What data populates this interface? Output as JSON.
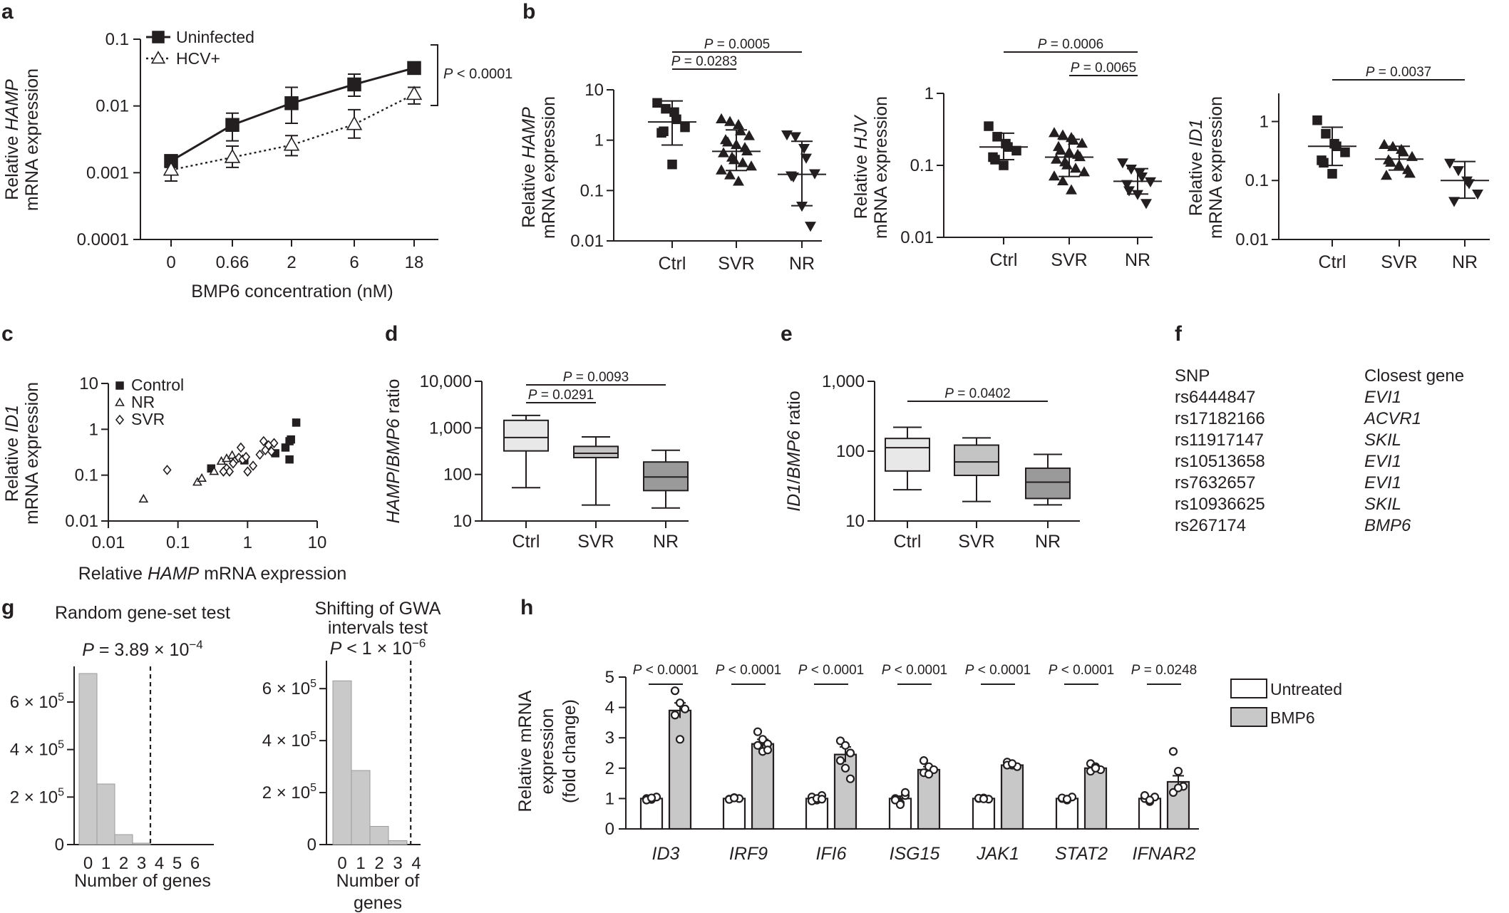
{
  "panel_labels": [
    "a",
    "b",
    "c",
    "d",
    "e",
    "f",
    "g",
    "h"
  ],
  "colors": {
    "ink": "#231f20",
    "box_ctrl": "#e8e8e8",
    "box_svr": "#c4c4c4",
    "box_nr": "#9a9a9a",
    "hist": "#c9c9c9",
    "bmp6_bar": "#c8c8c8"
  },
  "chart_data": [
    {
      "panel": "a",
      "type": "line",
      "ylog": true,
      "ylim": [
        0.0001,
        0.1
      ],
      "ytick_labels": [
        "0.1",
        "0.01",
        "0.001",
        "0.0001"
      ],
      "categories": [
        "0",
        "0.66",
        "2",
        "6",
        "18"
      ],
      "xlabel": "BMP6 concentration (nM)",
      "ylabel_pre": "Relative ",
      "ylabel_it": "HAMP",
      "ylabel_line2": "mRNA expression",
      "annotation_p": "P",
      "annotation_rest": " < 0.0001",
      "series": [
        {
          "name": "Uninfected",
          "marker": "filled-square",
          "line": "solid",
          "values": [
            0.0015,
            0.0052,
            0.011,
            0.021,
            0.037
          ],
          "err_low": [
            0.0012,
            0.003,
            0.0055,
            0.014,
            0.03
          ],
          "err_high": [
            0.0017,
            0.0078,
            0.019,
            0.03,
            0.045
          ]
        },
        {
          "name": "HCV+",
          "marker": "open-triangle",
          "line": "dotted",
          "values": [
            0.0011,
            0.0017,
            0.0026,
            0.0053,
            0.015
          ],
          "err_low": [
            0.00075,
            0.0012,
            0.0018,
            0.0033,
            0.0107
          ],
          "err_high": [
            0.0015,
            0.0025,
            0.0036,
            0.0088,
            0.019
          ]
        }
      ]
    },
    {
      "panel": "b1",
      "type": "scatter",
      "ylog": true,
      "ylim": [
        0.01,
        10
      ],
      "ytick_labels": [
        "10",
        "1",
        "0.1",
        "0.01"
      ],
      "categories": [
        "Ctrl",
        "SVR",
        "NR"
      ],
      "ylabel_pre": "Relative ",
      "ylabel_it": "HAMP",
      "ylabel_line2": "mRNA expression",
      "groups": [
        {
          "name": "Ctrl",
          "marker": "square",
          "mean": 2.3,
          "sd_low": 0.8,
          "sd_high": 6.0,
          "points": [
            5.5,
            4.2,
            3.6,
            2.6,
            1.8,
            1.4,
            1.5,
            0.33
          ]
        },
        {
          "name": "SVR",
          "marker": "triangle",
          "mean": 0.6,
          "sd_low": 0.25,
          "sd_high": 1.6,
          "points": [
            2.6,
            2.3,
            2.0,
            1.5,
            1.2,
            1.0,
            0.9,
            0.8,
            0.7,
            0.6,
            0.55,
            0.45,
            0.4,
            0.35,
            0.3,
            0.25,
            0.2,
            0.15
          ]
        },
        {
          "name": "NR",
          "marker": "inv-triangle",
          "mean": 0.21,
          "sd_low": 0.05,
          "sd_high": 0.95,
          "points": [
            1.3,
            1.2,
            0.7,
            0.45,
            0.22,
            0.2,
            0.19,
            0.05,
            0.02
          ]
        }
      ],
      "pvalues": [
        {
          "text": " = 0.0005",
          "from": 0,
          "to": 2,
          "level": 2
        },
        {
          "text": " = 0.0283",
          "from": 0,
          "to": 1,
          "level": 1
        }
      ]
    },
    {
      "panel": "b2",
      "type": "scatter",
      "ylog": true,
      "ylim": [
        0.01,
        1
      ],
      "ytick_labels": [
        "1",
        "0.1",
        "0.01"
      ],
      "categories": [
        "Ctrl",
        "SVR",
        "NR"
      ],
      "ylabel_pre": "Relative ",
      "ylabel_it": "HJV",
      "ylabel_line2": "mRNA expression",
      "groups": [
        {
          "name": "Ctrl",
          "marker": "square",
          "mean": 0.18,
          "sd_low": 0.12,
          "sd_high": 0.28,
          "points": [
            0.35,
            0.25,
            0.2,
            0.18,
            0.16,
            0.13,
            0.12,
            0.1
          ]
        },
        {
          "name": "SVR",
          "marker": "triangle",
          "mean": 0.13,
          "sd_low": 0.07,
          "sd_high": 0.23,
          "points": [
            0.28,
            0.26,
            0.24,
            0.22,
            0.2,
            0.18,
            0.16,
            0.15,
            0.14,
            0.13,
            0.12,
            0.11,
            0.1,
            0.09,
            0.08,
            0.07,
            0.06,
            0.045
          ]
        },
        {
          "name": "NR",
          "marker": "inv-triangle",
          "mean": 0.06,
          "sd_low": 0.04,
          "sd_high": 0.09,
          "points": [
            0.11,
            0.09,
            0.08,
            0.07,
            0.06,
            0.055,
            0.045,
            0.04,
            0.03
          ]
        }
      ],
      "pvalues": [
        {
          "text": " = 0.0006",
          "from": 0,
          "to": 2,
          "level": 2
        },
        {
          "text": " = 0.0065",
          "from": 1,
          "to": 2,
          "level": 1
        }
      ]
    },
    {
      "panel": "b3",
      "type": "scatter",
      "ylog": true,
      "ylim": [
        0.01,
        3
      ],
      "ytick_labels": [
        "1",
        "0.1",
        "0.01"
      ],
      "categories": [
        "Ctrl",
        "SVR",
        "NR"
      ],
      "ylabel_pre": "Relative ",
      "ylabel_it": "ID1",
      "ylabel_line2": "mRNA expression",
      "groups": [
        {
          "name": "Ctrl",
          "marker": "square",
          "mean": 0.38,
          "sd_low": 0.18,
          "sd_high": 0.8,
          "points": [
            1.05,
            0.62,
            0.42,
            0.38,
            0.3,
            0.22,
            0.2,
            0.13
          ]
        },
        {
          "name": "SVR",
          "marker": "triangle",
          "mean": 0.23,
          "sd_low": 0.15,
          "sd_high": 0.38,
          "points": [
            0.4,
            0.37,
            0.33,
            0.3,
            0.25,
            0.22,
            0.2,
            0.18,
            0.15,
            0.13,
            0.12
          ]
        },
        {
          "name": "NR",
          "marker": "inv-triangle",
          "mean": 0.1,
          "sd_low": 0.05,
          "sd_high": 0.21,
          "points": [
            0.2,
            0.15,
            0.1,
            0.09,
            0.06,
            0.045
          ]
        }
      ],
      "pvalues": [
        {
          "text": " = 0.0037",
          "from": 0,
          "to": 2,
          "level": 1
        }
      ]
    },
    {
      "panel": "c",
      "type": "scatter",
      "xlog": true,
      "ylog": true,
      "xlim": [
        0.01,
        10
      ],
      "ylim": [
        0.01,
        10
      ],
      "xtick_labels": [
        "0.01",
        "0.1",
        "1",
        "10"
      ],
      "ytick_labels": [
        "10",
        "1",
        "0.1",
        "0.01"
      ],
      "xlabel_pre": "Relative ",
      "xlabel_it": "HAMP",
      "xlabel_post": " mRNA expression",
      "ylabel_pre": "Relative ",
      "ylabel_it": "ID1",
      "ylabel_line2": "mRNA expression",
      "series": [
        {
          "name": "Control",
          "marker": "filled-square",
          "points": [
            [
              0.3,
              0.14
            ],
            [
              0.9,
              0.21
            ],
            [
              2.5,
              0.3
            ],
            [
              3.5,
              0.4
            ],
            [
              4.0,
              0.55
            ],
            [
              4.2,
              0.6
            ],
            [
              4.0,
              0.22
            ],
            [
              5.0,
              1.4
            ]
          ]
        },
        {
          "name": "NR",
          "marker": "open-triangle",
          "points": [
            [
              0.032,
              0.03
            ],
            [
              0.19,
              0.07
            ],
            [
              0.22,
              0.085
            ],
            [
              0.42,
              0.2
            ],
            [
              0.5,
              0.23
            ],
            [
              0.6,
              0.27
            ],
            [
              0.33,
              0.12
            ]
          ]
        },
        {
          "name": "SVR",
          "marker": "open-diamond",
          "points": [
            [
              0.07,
              0.13
            ],
            [
              0.5,
              0.14
            ],
            [
              0.65,
              0.2
            ],
            [
              0.75,
              0.24
            ],
            [
              0.85,
              0.22
            ],
            [
              1.0,
              0.12
            ],
            [
              1.2,
              0.16
            ],
            [
              1.8,
              0.35
            ],
            [
              2.0,
              0.45
            ],
            [
              2.2,
              0.33
            ],
            [
              1.5,
              0.28
            ],
            [
              0.55,
              0.12
            ],
            [
              0.8,
              0.4
            ],
            [
              0.95,
              0.25
            ],
            [
              2.4,
              0.5
            ],
            [
              1.7,
              0.55
            ],
            [
              0.45,
              0.12
            ],
            [
              0.62,
              0.18
            ]
          ]
        }
      ]
    },
    {
      "panel": "d",
      "type": "box",
      "ylog": true,
      "ylim": [
        10,
        10000
      ],
      "ytick_labels": [
        "10,000",
        "1,000",
        "100",
        "10"
      ],
      "categories": [
        "Ctrl",
        "SVR",
        "NR"
      ],
      "ylabel_parts": [
        "HAMP",
        "/",
        "BMP6",
        " ratio"
      ],
      "boxes": [
        {
          "name": "Ctrl",
          "min": 52,
          "q1": 320,
          "median": 620,
          "q3": 1450,
          "max": 1850
        },
        {
          "name": "SVR",
          "min": 22,
          "q1": 230,
          "median": 285,
          "q3": 400,
          "max": 640
        },
        {
          "name": "NR",
          "min": 19,
          "q1": 45,
          "median": 88,
          "q3": 185,
          "max": 330
        }
      ],
      "pvalues": [
        {
          "text": " = 0.0093",
          "from": 0,
          "to": 2,
          "level": 2
        },
        {
          "text": " = 0.0291",
          "from": 0,
          "to": 1,
          "level": 1
        }
      ]
    },
    {
      "panel": "e",
      "type": "box",
      "ylog": true,
      "ylim": [
        10,
        1000
      ],
      "ytick_labels": [
        "1,000",
        "100",
        "10"
      ],
      "categories": [
        "Ctrl",
        "SVR",
        "NR"
      ],
      "ylabel_parts": [
        "ID1",
        "/",
        "BMP6",
        " ratio"
      ],
      "boxes": [
        {
          "name": "Ctrl",
          "min": 28,
          "q1": 52,
          "median": 112,
          "q3": 152,
          "max": 220
        },
        {
          "name": "SVR",
          "min": 19,
          "q1": 45,
          "median": 70,
          "q3": 122,
          "max": 155
        },
        {
          "name": "NR",
          "min": 17,
          "q1": 21,
          "median": 36,
          "q3": 57,
          "max": 90
        }
      ],
      "pvalues": [
        {
          "text": " = 0.0402",
          "from": 0,
          "to": 2,
          "level": 1
        }
      ]
    },
    {
      "panel": "g1",
      "type": "bar",
      "title": "Random gene-set test",
      "subtitle_p": "P",
      "subtitle_rest": " = 3.89 × 10",
      "subtitle_exp": "−4",
      "xlabel": "Number of genes",
      "categories": [
        "0",
        "1",
        "2",
        "3",
        "4",
        "5",
        "6"
      ],
      "xtick_labels": [
        "0",
        "1",
        "2",
        "3",
        "4",
        "5",
        "6"
      ],
      "values": [
        720000,
        255000,
        42000,
        6000,
        0,
        0,
        0
      ],
      "ylim": [
        0,
        720000
      ],
      "yticks": [
        {
          "value": 0,
          "label": "0"
        },
        {
          "value": 200000,
          "label": "2 × 10",
          "exp": "5"
        },
        {
          "value": 400000,
          "label": "4 × 10",
          "exp": "5"
        },
        {
          "value": 600000,
          "label": "6 × 10",
          "exp": "5"
        }
      ],
      "dashed_line_at": 4,
      "xmax": 7
    },
    {
      "panel": "g2",
      "type": "bar",
      "title_lines": [
        "Shifting of GWA",
        "intervals test"
      ],
      "subtitle_p": "P",
      "subtitle_rest": " < 1 × 10",
      "subtitle_exp": "−6",
      "xlabel_lines": [
        "Number of",
        "genes"
      ],
      "categories": [
        "0",
        "1",
        "2",
        "3"
      ],
      "xtick_labels": [
        "0",
        "1",
        "2",
        "3",
        "4"
      ],
      "values": [
        630000,
        285000,
        70000,
        15000
      ],
      "ylim": [
        0,
        680000
      ],
      "yticks": [
        {
          "value": 0,
          "label": "0"
        },
        {
          "value": 200000,
          "label": "2 × 10",
          "exp": "5"
        },
        {
          "value": 400000,
          "label": "4 × 10",
          "exp": "5"
        },
        {
          "value": 600000,
          "label": "6 × 10",
          "exp": "5"
        }
      ],
      "dashed_line_at": 4.2,
      "xmax": 4.5
    },
    {
      "panel": "h",
      "type": "bar",
      "ylim": [
        0,
        5
      ],
      "ytick_labels": [
        "0",
        "1",
        "2",
        "3",
        "4",
        "5"
      ],
      "ylabel_lines": [
        "Relative mRNA",
        "expression",
        "(fold change)"
      ],
      "categories": [
        "ID3",
        "IRF9",
        "IFI6",
        "ISG15",
        "JAK1",
        "STAT2",
        "IFNAR2"
      ],
      "series": [
        {
          "name": "Untreated",
          "values": [
            1.0,
            1.0,
            1.0,
            1.0,
            1.0,
            1.0,
            1.0
          ],
          "sem": [
            0.04,
            0.04,
            0.06,
            0.08,
            0.03,
            0.04,
            0.06
          ],
          "points": [
            [
              1.0,
              0.97,
              1.05,
              0.95,
              1.02
            ],
            [
              0.98,
              1.03,
              1.0,
              0.97,
              1.02
            ],
            [
              1.05,
              0.95,
              1.1,
              0.92,
              1.0,
              0.98
            ],
            [
              1.0,
              0.85,
              1.1,
              0.95,
              0.8,
              1.2
            ],
            [
              1.0,
              1.02,
              0.98,
              1.01,
              0.99
            ],
            [
              1.0,
              0.95,
              1.05,
              1.02,
              0.98
            ],
            [
              1.0,
              0.9,
              1.05,
              1.1,
              0.95
            ]
          ]
        },
        {
          "name": "BMP6",
          "values": [
            3.9,
            2.8,
            2.45,
            1.95,
            2.1,
            2.0,
            1.55
          ],
          "sem": [
            0.25,
            0.15,
            0.25,
            0.1,
            0.05,
            0.06,
            0.2
          ],
          "points": [
            [
              4.55,
              4.15,
              3.95,
              3.75,
              2.95
            ],
            [
              3.2,
              2.95,
              2.8,
              2.75,
              2.55,
              2.6
            ],
            [
              2.9,
              2.75,
              2.5,
              2.25,
              2.0,
              1.65
            ],
            [
              2.25,
              2.05,
              1.95,
              1.85,
              1.8
            ],
            [
              2.2,
              2.1,
              2.05,
              2.1,
              2.15
            ],
            [
              2.15,
              2.05,
              1.95,
              1.9,
              2.0
            ],
            [
              2.55,
              1.9,
              1.4,
              1.2,
              1.35
            ]
          ]
        }
      ],
      "pvalues": [
        " < 0.0001",
        " < 0.0001",
        " < 0.0001",
        " < 0.0001",
        " < 0.0001",
        " < 0.0001",
        " = 0.0248"
      ]
    }
  ],
  "f_table": {
    "header_snp": "SNP",
    "header_gene": "Closest gene",
    "rows": [
      {
        "snp": "rs6444847",
        "gene": "EVI1"
      },
      {
        "snp": "rs17182166",
        "gene": "ACVR1"
      },
      {
        "snp": "rs11917147",
        "gene": "SKIL"
      },
      {
        "snp": "rs10513658",
        "gene": "EVI1"
      },
      {
        "snp": "rs7632657",
        "gene": "EVI1"
      },
      {
        "snp": "rs10936625",
        "gene": "SKIL"
      },
      {
        "snp": "rs267174",
        "gene": "BMP6"
      }
    ]
  }
}
